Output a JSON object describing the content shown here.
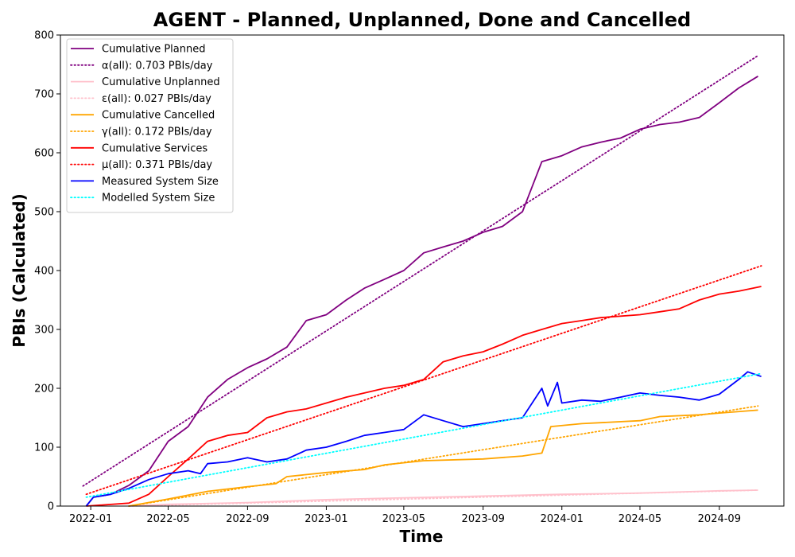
{
  "chart_data": {
    "type": "line",
    "title": "AGENT - Planned, Unplanned, Done  and Cancelled",
    "xlabel": "Time",
    "ylabel": "PBIs (Calculated)",
    "x_axis": {
      "type": "date",
      "range": [
        "2021-11-15",
        "2024-12-10"
      ],
      "ticks": [
        {
          "date": "2022-01-01",
          "label": "2022-01"
        },
        {
          "date": "2022-05-01",
          "label": "2022-05"
        },
        {
          "date": "2022-09-01",
          "label": "2022-09"
        },
        {
          "date": "2023-01-01",
          "label": "2023-01"
        },
        {
          "date": "2023-05-01",
          "label": "2023-05"
        },
        {
          "date": "2023-09-01",
          "label": "2023-09"
        },
        {
          "date": "2024-01-01",
          "label": "2024-01"
        },
        {
          "date": "2024-05-01",
          "label": "2024-05"
        },
        {
          "date": "2024-09-01",
          "label": "2024-09"
        }
      ]
    },
    "y_axis": {
      "range": [
        0,
        800
      ],
      "ticks": [
        {
          "value": 0,
          "label": "0"
        },
        {
          "value": 100,
          "label": "100"
        },
        {
          "value": 200,
          "label": "200"
        },
        {
          "value": 300,
          "label": "300"
        },
        {
          "value": 400,
          "label": "400"
        },
        {
          "value": 500,
          "label": "500"
        },
        {
          "value": 600,
          "label": "600"
        },
        {
          "value": 700,
          "label": "700"
        },
        {
          "value": 800,
          "label": "800"
        }
      ]
    },
    "grid": false,
    "legend_position": "top-left",
    "series": [
      {
        "name": "Cumulative Planned",
        "color": "#800080",
        "style": "solid",
        "points": [
          [
            "2021-12-25",
            0
          ],
          [
            "2022-01-05",
            15
          ],
          [
            "2022-02-01",
            20
          ],
          [
            "2022-03-01",
            35
          ],
          [
            "2022-04-01",
            60
          ],
          [
            "2022-05-01",
            110
          ],
          [
            "2022-06-01",
            135
          ],
          [
            "2022-07-01",
            185
          ],
          [
            "2022-08-01",
            215
          ],
          [
            "2022-09-01",
            235
          ],
          [
            "2022-10-01",
            250
          ],
          [
            "2022-11-01",
            270
          ],
          [
            "2022-12-01",
            315
          ],
          [
            "2023-01-01",
            325
          ],
          [
            "2023-02-01",
            350
          ],
          [
            "2023-03-01",
            370
          ],
          [
            "2023-04-01",
            385
          ],
          [
            "2023-05-01",
            400
          ],
          [
            "2023-06-01",
            430
          ],
          [
            "2023-07-01",
            440
          ],
          [
            "2023-08-01",
            450
          ],
          [
            "2023-09-01",
            465
          ],
          [
            "2023-10-01",
            475
          ],
          [
            "2023-11-01",
            500
          ],
          [
            "2023-12-01",
            585
          ],
          [
            "2024-01-01",
            595
          ],
          [
            "2024-02-01",
            610
          ],
          [
            "2024-03-01",
            618
          ],
          [
            "2024-04-01",
            625
          ],
          [
            "2024-05-01",
            640
          ],
          [
            "2024-06-01",
            648
          ],
          [
            "2024-07-01",
            652
          ],
          [
            "2024-08-01",
            660
          ],
          [
            "2024-09-01",
            685
          ],
          [
            "2024-10-01",
            710
          ],
          [
            "2024-10-31",
            730
          ]
        ]
      },
      {
        "name": "α(all): 0.703 PBIs/day",
        "color": "#800080",
        "style": "dotted",
        "points": [
          [
            "2021-12-20",
            34
          ],
          [
            "2024-10-31",
            765
          ]
        ]
      },
      {
        "name": "Cumulative Unplanned",
        "color": "#ffc0cb",
        "style": "solid",
        "points": [
          [
            "2022-03-01",
            0
          ],
          [
            "2022-05-01",
            3
          ],
          [
            "2022-09-01",
            6
          ],
          [
            "2023-01-01",
            11
          ],
          [
            "2023-05-01",
            14
          ],
          [
            "2023-09-01",
            17
          ],
          [
            "2024-01-01",
            20
          ],
          [
            "2024-05-01",
            22
          ],
          [
            "2024-09-01",
            26
          ],
          [
            "2024-10-31",
            27
          ]
        ]
      },
      {
        "name": "ε(all): 0.027 PBIs/day",
        "color": "#ffc0cb",
        "style": "dotted",
        "points": [
          [
            "2022-03-01",
            0
          ],
          [
            "2024-10-31",
            27
          ]
        ]
      },
      {
        "name": "Cumulative Cancelled",
        "color": "#ffa500",
        "style": "solid",
        "points": [
          [
            "2022-03-01",
            0
          ],
          [
            "2022-05-01",
            12
          ],
          [
            "2022-07-01",
            25
          ],
          [
            "2022-09-01",
            33
          ],
          [
            "2022-10-15",
            38
          ],
          [
            "2022-11-01",
            50
          ],
          [
            "2023-01-01",
            57
          ],
          [
            "2023-03-01",
            62
          ],
          [
            "2023-04-01",
            70
          ],
          [
            "2023-06-01",
            77
          ],
          [
            "2023-09-01",
            80
          ],
          [
            "2023-11-01",
            85
          ],
          [
            "2023-12-01",
            90
          ],
          [
            "2023-12-15",
            135
          ],
          [
            "2024-02-01",
            140
          ],
          [
            "2024-05-01",
            145
          ],
          [
            "2024-06-01",
            152
          ],
          [
            "2024-08-01",
            155
          ],
          [
            "2024-09-01",
            158
          ],
          [
            "2024-10-31",
            163
          ]
        ]
      },
      {
        "name": "γ(all): 0.172 PBIs/day",
        "color": "#ffa500",
        "style": "dotted",
        "points": [
          [
            "2022-03-01",
            0
          ],
          [
            "2024-10-31",
            170
          ]
        ]
      },
      {
        "name": "Cumulative Services",
        "color": "#ff0000",
        "style": "solid",
        "points": [
          [
            "2021-12-25",
            0
          ],
          [
            "2022-03-01",
            5
          ],
          [
            "2022-04-01",
            20
          ],
          [
            "2022-05-01",
            50
          ],
          [
            "2022-06-01",
            80
          ],
          [
            "2022-07-01",
            110
          ],
          [
            "2022-08-01",
            120
          ],
          [
            "2022-09-01",
            125
          ],
          [
            "2022-10-01",
            150
          ],
          [
            "2022-11-01",
            160
          ],
          [
            "2022-12-01",
            165
          ],
          [
            "2023-01-01",
            175
          ],
          [
            "2023-02-01",
            185
          ],
          [
            "2023-03-01",
            192
          ],
          [
            "2023-04-01",
            200
          ],
          [
            "2023-05-01",
            205
          ],
          [
            "2023-06-01",
            215
          ],
          [
            "2023-07-01",
            245
          ],
          [
            "2023-08-01",
            255
          ],
          [
            "2023-09-01",
            262
          ],
          [
            "2023-10-01",
            275
          ],
          [
            "2023-11-01",
            290
          ],
          [
            "2023-12-01",
            300
          ],
          [
            "2024-01-01",
            310
          ],
          [
            "2024-02-01",
            315
          ],
          [
            "2024-03-01",
            320
          ],
          [
            "2024-05-01",
            325
          ],
          [
            "2024-06-01",
            330
          ],
          [
            "2024-07-01",
            335
          ],
          [
            "2024-08-01",
            350
          ],
          [
            "2024-09-01",
            360
          ],
          [
            "2024-10-01",
            365
          ],
          [
            "2024-11-05",
            373
          ]
        ]
      },
      {
        "name": "μ(all): 0.371 PBIs/day",
        "color": "#ff0000",
        "style": "dotted",
        "points": [
          [
            "2021-12-25",
            20
          ],
          [
            "2024-11-05",
            408
          ]
        ]
      },
      {
        "name": "Measured System Size",
        "color": "#0000ff",
        "style": "solid",
        "points": [
          [
            "2021-12-25",
            0
          ],
          [
            "2022-01-05",
            15
          ],
          [
            "2022-02-01",
            20
          ],
          [
            "2022-03-01",
            30
          ],
          [
            "2022-04-01",
            45
          ],
          [
            "2022-05-01",
            55
          ],
          [
            "2022-06-01",
            60
          ],
          [
            "2022-06-20",
            55
          ],
          [
            "2022-07-01",
            72
          ],
          [
            "2022-08-01",
            75
          ],
          [
            "2022-09-01",
            82
          ],
          [
            "2022-10-01",
            75
          ],
          [
            "2022-11-01",
            80
          ],
          [
            "2022-12-01",
            95
          ],
          [
            "2023-01-01",
            100
          ],
          [
            "2023-02-01",
            110
          ],
          [
            "2023-03-01",
            120
          ],
          [
            "2023-04-01",
            125
          ],
          [
            "2023-05-01",
            130
          ],
          [
            "2023-06-01",
            155
          ],
          [
            "2023-07-01",
            145
          ],
          [
            "2023-08-01",
            135
          ],
          [
            "2023-09-01",
            140
          ],
          [
            "2023-10-01",
            145
          ],
          [
            "2023-11-01",
            150
          ],
          [
            "2023-11-25",
            190
          ],
          [
            "2023-12-01",
            200
          ],
          [
            "2023-12-10",
            170
          ],
          [
            "2023-12-25",
            210
          ],
          [
            "2024-01-01",
            175
          ],
          [
            "2024-02-01",
            180
          ],
          [
            "2024-03-01",
            178
          ],
          [
            "2024-04-01",
            185
          ],
          [
            "2024-05-01",
            192
          ],
          [
            "2024-06-01",
            188
          ],
          [
            "2024-07-01",
            185
          ],
          [
            "2024-08-01",
            180
          ],
          [
            "2024-09-01",
            190
          ],
          [
            "2024-10-01",
            215
          ],
          [
            "2024-10-15",
            228
          ],
          [
            "2024-11-05",
            220
          ]
        ]
      },
      {
        "name": "Modelled System Size",
        "color": "#00ffff",
        "style": "dotted",
        "points": [
          [
            "2021-12-25",
            15
          ],
          [
            "2024-11-05",
            225
          ]
        ]
      }
    ]
  }
}
